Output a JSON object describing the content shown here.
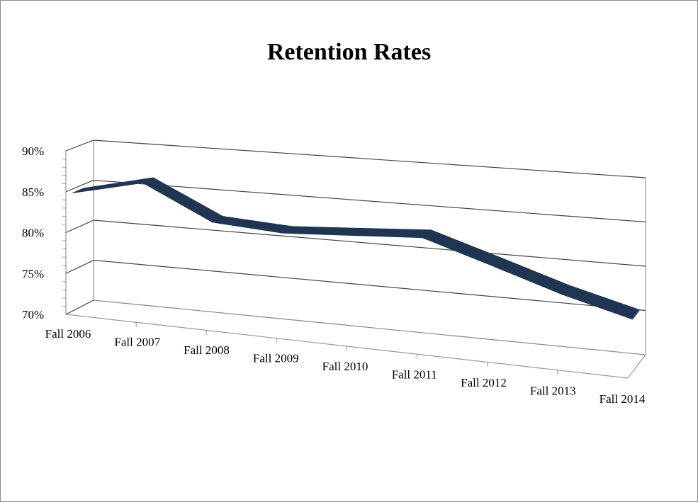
{
  "chart_data": {
    "type": "line",
    "style": "3d-ribbon",
    "title": "Retention Rates",
    "categories": [
      "Fall 2006",
      "Fall 2007",
      "Fall 2008",
      "Fall 2009",
      "Fall 2010",
      "Fall 2011",
      "Fall 2012",
      "Fall 2013",
      "Fall 2014"
    ],
    "series": [
      {
        "values": [
          84.5,
          86.5,
          82.5,
          82.0,
          82.5,
          83.0,
          80.5,
          78.0,
          76.0
        ],
        "color": "#1f3552"
      }
    ],
    "ylim": [
      70,
      90
    ],
    "yticks": [
      "70%",
      "75%",
      "80%",
      "85%",
      "90%"
    ],
    "grid": true,
    "legend": "none",
    "xlabel": "",
    "ylabel": ""
  }
}
